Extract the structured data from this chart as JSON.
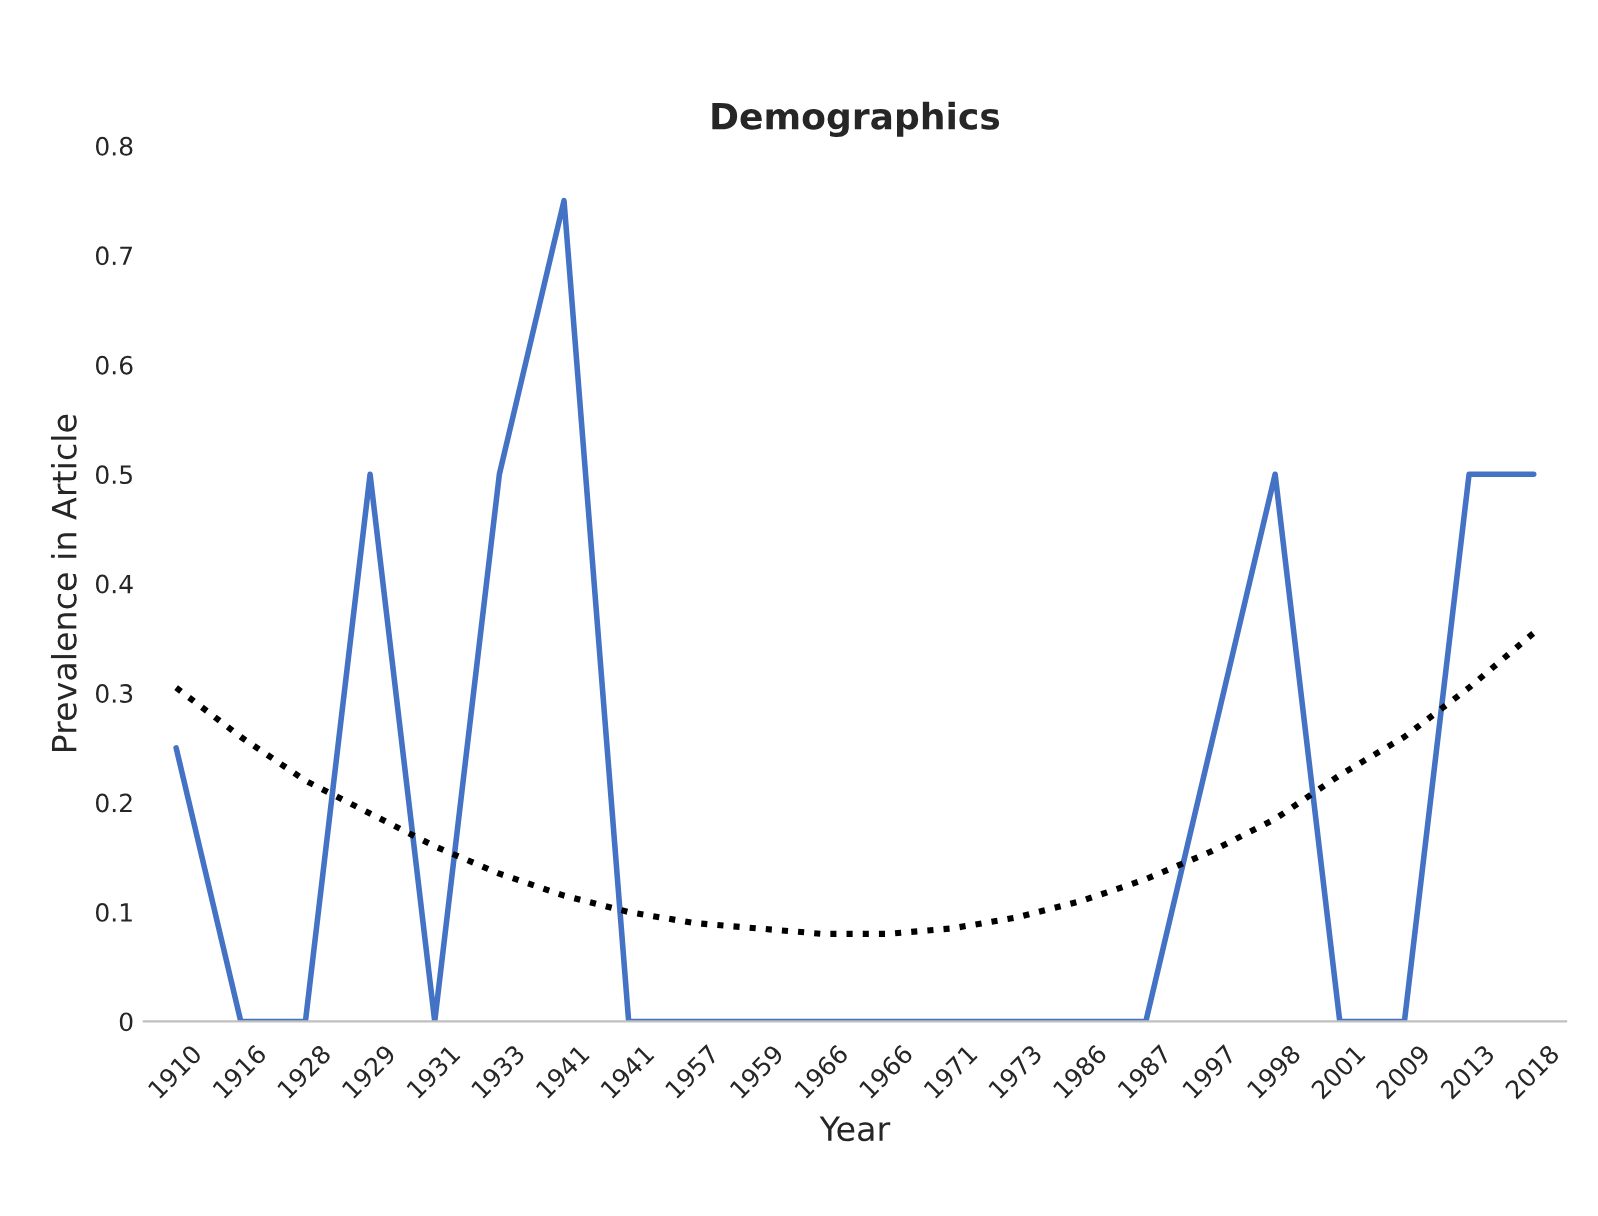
{
  "chart_data": {
    "type": "line",
    "title": "Demographics",
    "xlabel": "Year",
    "ylabel": "Prevalence in Article",
    "categories": [
      "1910",
      "1916",
      "1928",
      "1929",
      "1931",
      "1933",
      "1941",
      "1941",
      "1957",
      "1959",
      "1966",
      "1966",
      "1971",
      "1973",
      "1986",
      "1987",
      "1997",
      "1998",
      "2001",
      "2009",
      "2013",
      "2018"
    ],
    "series": [
      {
        "color": "#4472c4",
        "line_style": "solid",
        "values": [
          0.25,
          0,
          0,
          0.5,
          0,
          0.5,
          0.75,
          0,
          0,
          0,
          0,
          0,
          0,
          0,
          0,
          0,
          0.25,
          0.5,
          0,
          0,
          0.5,
          0.5
        ]
      },
      {
        "color": "#000000",
        "line_style": "dotted",
        "values": [
          0.305,
          0.26,
          0.22,
          0.19,
          0.16,
          0.135,
          0.115,
          0.1,
          0.09,
          0.085,
          0.08,
          0.08,
          0.085,
          0.095,
          0.11,
          0.13,
          0.155,
          0.185,
          0.225,
          0.26,
          0.305,
          0.355
        ]
      }
    ],
    "ylim": [
      0,
      0.8
    ],
    "yticks": [
      0,
      0.1,
      0.2,
      0.3,
      0.4,
      0.5,
      0.6,
      0.7,
      0.8
    ],
    "grid": false,
    "legend": false
  }
}
